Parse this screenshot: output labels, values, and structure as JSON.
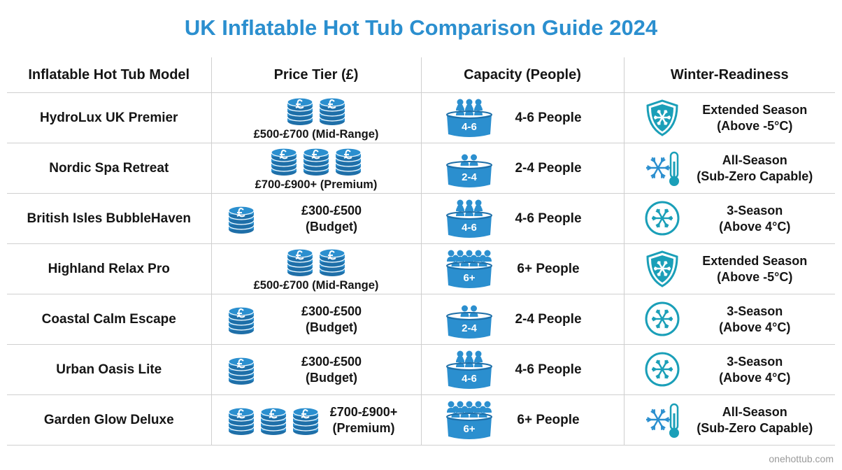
{
  "title": "UK Inflatable Hot Tub Comparison Guide 2024",
  "table": {
    "headers": [
      "Inflatable Hot Tub Model",
      "Price Tier (£)",
      "Capacity (People)",
      "Winter-Readiness"
    ],
    "rows": [
      {
        "model": "HydroLux UK Premier",
        "price": [
          "£500-£700 (Mid-Range)"
        ],
        "badge": "4-6",
        "capacity": "4-6 People",
        "winter": [
          "Extended Season",
          "(Above -5°C)"
        ]
      },
      {
        "model": "Nordic Spa Retreat",
        "price": [
          "£700-£900+ (Premium)"
        ],
        "badge": "2-4",
        "capacity": "2-4 People",
        "winter": [
          "All-Season",
          "(Sub-Zero Capable)"
        ]
      },
      {
        "model": "British Isles BubbleHaven",
        "price": [
          "£300-£500",
          "(Budget)"
        ],
        "badge": "4-6",
        "capacity": "4-6 People",
        "winter": [
          "3-Season",
          "(Above 4°C)"
        ]
      },
      {
        "model": "Highland Relax Pro",
        "price": [
          "£500-£700 (Mid-Range)"
        ],
        "badge": "6+",
        "capacity": "6+ People",
        "winter": [
          "Extended Season",
          "(Above -5°C)"
        ]
      },
      {
        "model": "Coastal Calm Escape",
        "price": [
          "£300-£500",
          "(Budget)"
        ],
        "badge": "2-4",
        "capacity": "2-4 People",
        "winter": [
          "3-Season",
          "(Above 4°C)"
        ]
      },
      {
        "model": "Urban Oasis Lite",
        "price": [
          "£300-£500",
          "(Budget)"
        ],
        "badge": "4-6",
        "capacity": "4-6 People",
        "winter": [
          "3-Season",
          "(Above 4°C)"
        ]
      },
      {
        "model": "Garden Glow Deluxe",
        "price": [
          "£700-£900+",
          "(Premium)"
        ],
        "badge": "6+",
        "capacity": "6+ People",
        "winter": [
          "All-Season",
          "(Sub-Zero Capable)"
        ]
      }
    ]
  },
  "footer": "onehottub.com"
}
